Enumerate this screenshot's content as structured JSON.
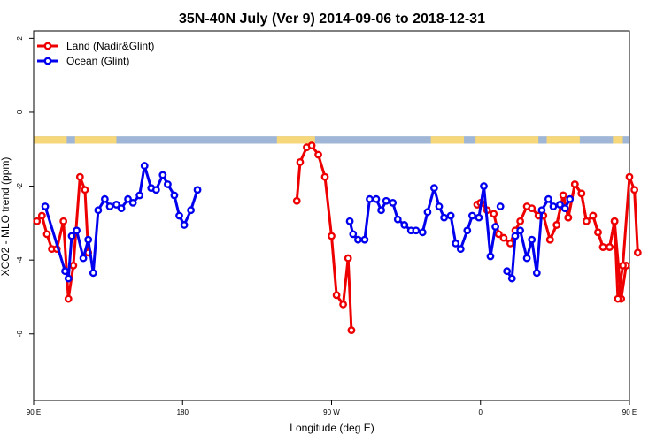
{
  "chart_data": {
    "type": "line",
    "title": "35N-40N July (Ver 9)   2014-09-06 to 2018-12-31",
    "xlabel": "Longitude (deg E)",
    "ylabel": "XCO2 - MLO trend (ppm)",
    "xlim": [
      90,
      450
    ],
    "ylim": [
      -7.8,
      2.2
    ],
    "x_ticks": [
      {
        "value": 90,
        "label": "90 E"
      },
      {
        "value": 180,
        "label": "180"
      },
      {
        "value": 270,
        "label": "90 W"
      },
      {
        "value": 360,
        "label": "0"
      },
      {
        "value": 450,
        "label": "90 E"
      },
      {
        "value": 540,
        "label": "180"
      }
    ],
    "y_ticks": [
      {
        "value": 2,
        "label": "2"
      },
      {
        "value": 0,
        "label": "0"
      },
      {
        "value": -2,
        "label": "-2"
      },
      {
        "value": -4,
        "label": "-4"
      },
      {
        "value": -6,
        "label": "-6"
      }
    ],
    "x_unit_note": "x values are longitude measured continuously eastward from 0 E; values above 360 repeat the 0-180 E range shown on the right of the axis",
    "legend": {
      "placement": "top-left"
    },
    "land_strip": {
      "y_range": [
        -0.65,
        -0.85
      ],
      "ocean_color": "#9fb6d6",
      "land_color": "#f6d77a",
      "land_intervals": [
        [
          90,
          110
        ],
        [
          115,
          140
        ],
        [
          237,
          260
        ],
        [
          330,
          350
        ],
        [
          357,
          395
        ],
        [
          400,
          420
        ],
        [
          440,
          446
        ]
      ]
    },
    "series": [
      {
        "name": "Land (Nadir&Glint)",
        "color": "#ee0000",
        "segments": [
          [
            [
              92,
              -2.95
            ],
            [
              95,
              -2.8
            ],
            [
              98,
              -3.3
            ],
            [
              101,
              -3.7
            ],
            [
              104,
              -3.7
            ],
            [
              108,
              -2.95
            ],
            [
              111,
              -5.05
            ],
            [
              114,
              -4.15
            ],
            [
              118,
              -1.75
            ],
            [
              121,
              -2.1
            ],
            [
              123,
              -3.8
            ]
          ],
          [
            [
              249,
              -2.4
            ],
            [
              251,
              -1.35
            ],
            [
              255,
              -0.95
            ],
            [
              258,
              -0.9
            ],
            [
              262,
              -1.15
            ],
            [
              266,
              -1.75
            ],
            [
              270,
              -3.35
            ],
            [
              273,
              -4.95
            ],
            [
              277,
              -5.2
            ],
            [
              280,
              -3.95
            ],
            [
              282,
              -5.9
            ]
          ],
          [
            [
              358,
              -2.5
            ],
            [
              360,
              -2.45
            ],
            [
              364,
              -2.65
            ],
            [
              368,
              -2.75
            ],
            [
              371,
              -3.3
            ],
            [
              374,
              -3.4
            ],
            [
              378,
              -3.55
            ],
            [
              381,
              -3.2
            ],
            [
              384,
              -2.95
            ],
            [
              388,
              -2.55
            ],
            [
              391,
              -2.6
            ],
            [
              395,
              -2.8
            ],
            [
              398,
              -2.8
            ],
            [
              402,
              -3.45
            ],
            [
              406,
              -3.05
            ],
            [
              410,
              -2.25
            ],
            [
              413,
              -2.85
            ],
            [
              417,
              -1.95
            ],
            [
              421,
              -2.2
            ],
            [
              424,
              -2.95
            ],
            [
              428,
              -2.8
            ],
            [
              431,
              -3.25
            ],
            [
              434,
              -3.65
            ],
            [
              438,
              -3.65
            ],
            [
              441,
              -2.95
            ],
            [
              445,
              -5.05
            ],
            [
              448,
              -4.15
            ]
          ],
          [
            [
              402,
              -3.45
            ],
            [
              406,
              -3.05
            ],
            [
              410,
              -2.25
            ],
            [
              413,
              -2.85
            ],
            [
              417,
              -1.95
            ],
            [
              421,
              -2.2
            ],
            [
              424,
              -2.95
            ],
            [
              428,
              -2.8
            ],
            [
              431,
              -3.25
            ],
            [
              434,
              -3.65
            ],
            [
              438,
              -3.65
            ],
            [
              441,
              -2.95
            ],
            [
              443,
              -5.05
            ],
            [
              446,
              -4.15
            ],
            [
              450,
              -1.75
            ],
            [
              453,
              -2.1
            ],
            [
              455,
              -3.8
            ]
          ]
        ]
      },
      {
        "name": "Ocean (Glint)",
        "color": "#0000ee",
        "segments": [
          [
            [
              97,
              -2.55
            ],
            [
              109,
              -4.3
            ],
            [
              111,
              -4.5
            ],
            [
              113,
              -3.35
            ],
            [
              116,
              -3.2
            ],
            [
              120,
              -3.95
            ],
            [
              123,
              -3.45
            ],
            [
              126,
              -4.35
            ],
            [
              129,
              -2.65
            ],
            [
              133,
              -2.35
            ],
            [
              136,
              -2.55
            ],
            [
              140,
              -2.5
            ],
            [
              143,
              -2.6
            ],
            [
              147,
              -2.35
            ],
            [
              150,
              -2.45
            ],
            [
              154,
              -2.25
            ],
            [
              157,
              -1.45
            ],
            [
              161,
              -2.05
            ],
            [
              164,
              -2.1
            ],
            [
              168,
              -1.7
            ],
            [
              171,
              -1.95
            ],
            [
              175,
              -2.25
            ],
            [
              178,
              -2.8
            ],
            [
              181,
              -3.05
            ],
            [
              185,
              -2.65
            ],
            [
              189,
              -2.1
            ]
          ],
          [
            [
              281,
              -2.95
            ],
            [
              283,
              -3.3
            ],
            [
              286,
              -3.45
            ],
            [
              290,
              -3.45
            ],
            [
              293,
              -2.35
            ],
            [
              297,
              -2.35
            ],
            [
              300,
              -2.65
            ],
            [
              303,
              -2.4
            ],
            [
              307,
              -2.45
            ],
            [
              310,
              -2.9
            ],
            [
              314,
              -3.05
            ],
            [
              318,
              -3.2
            ],
            [
              321,
              -3.2
            ],
            [
              325,
              -3.25
            ],
            [
              328,
              -2.7
            ],
            [
              332,
              -2.05
            ],
            [
              335,
              -2.55
            ],
            [
              338,
              -2.85
            ],
            [
              342,
              -2.8
            ],
            [
              345,
              -3.55
            ],
            [
              348,
              -3.7
            ],
            [
              352,
              -3.2
            ],
            [
              355,
              -2.8
            ],
            [
              359,
              -2.85
            ],
            [
              362,
              -2.0
            ],
            [
              366,
              -3.9
            ],
            [
              369,
              -3.1
            ]
          ],
          [
            [
              372,
              -2.55
            ]
          ],
          [
            [
              376,
              -4.3
            ],
            [
              379,
              -4.5
            ],
            [
              381,
              -3.35
            ],
            [
              384,
              -3.2
            ],
            [
              388,
              -3.95
            ],
            [
              391,
              -3.45
            ],
            [
              394,
              -4.35
            ],
            [
              397,
              -2.65
            ],
            [
              401,
              -2.35
            ],
            [
              404,
              -2.55
            ],
            [
              408,
              -2.5
            ],
            [
              411,
              -2.6
            ],
            [
              414,
              -2.35
            ]
          ]
        ]
      }
    ]
  }
}
